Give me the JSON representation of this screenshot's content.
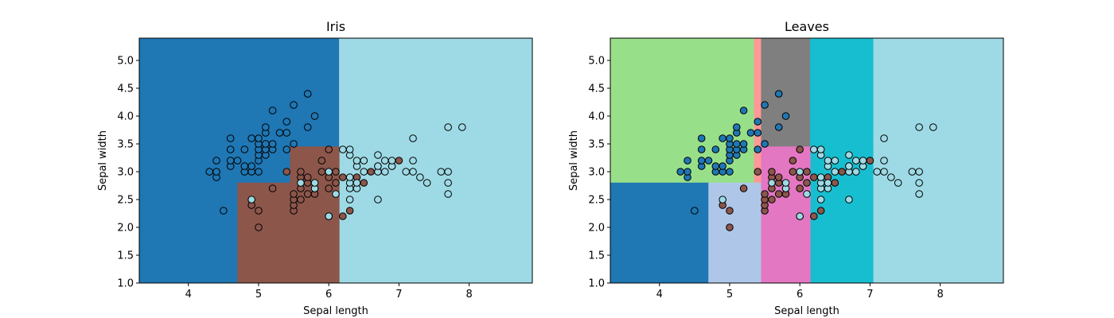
{
  "chart_data": [
    {
      "type": "scatter",
      "title": "Iris",
      "xlabel": "Sepal length",
      "ylabel": "Sepal width",
      "xlim": [
        3.3,
        8.9
      ],
      "ylim": [
        1.0,
        5.4
      ],
      "xticks": [
        "4",
        "5",
        "6",
        "7",
        "8"
      ],
      "yticks": [
        "1.0",
        "1.5",
        "2.0",
        "2.5",
        "3.0",
        "3.5",
        "4.0",
        "4.5",
        "5.0"
      ],
      "grid": false,
      "regions": [
        {
          "x": [
            3.3,
            6.15
          ],
          "y": [
            1.0,
            5.4
          ],
          "color": "#1f77b4"
        },
        {
          "x": [
            6.15,
            8.9
          ],
          "y": [
            1.0,
            5.4
          ],
          "color": "#9edae5"
        },
        {
          "x": [
            4.7,
            5.45
          ],
          "y": [
            1.0,
            2.8
          ],
          "color": "#8c564b"
        },
        {
          "x": [
            5.45,
            6.15
          ],
          "y": [
            1.0,
            3.45
          ],
          "color": "#8c564b"
        }
      ],
      "series": [
        {
          "color": "#1f77b4",
          "points": [
            [
              4.3,
              3.0
            ],
            [
              4.4,
              2.9
            ],
            [
              4.4,
              3.0
            ],
            [
              4.4,
              3.2
            ],
            [
              4.5,
              2.3
            ],
            [
              4.6,
              3.1
            ],
            [
              4.6,
              3.2
            ],
            [
              4.6,
              3.4
            ],
            [
              4.6,
              3.6
            ],
            [
              4.7,
              3.2
            ],
            [
              4.8,
              3.0
            ],
            [
              4.8,
              3.1
            ],
            [
              4.8,
              3.4
            ],
            [
              4.9,
              3.0
            ],
            [
              4.9,
              3.1
            ],
            [
              4.9,
              3.6
            ],
            [
              5.0,
              3.0
            ],
            [
              5.0,
              3.2
            ],
            [
              5.0,
              3.3
            ],
            [
              5.0,
              3.4
            ],
            [
              5.0,
              3.5
            ],
            [
              5.0,
              3.6
            ],
            [
              5.1,
              3.3
            ],
            [
              5.1,
              3.4
            ],
            [
              5.1,
              3.5
            ],
            [
              5.1,
              3.7
            ],
            [
              5.1,
              3.8
            ],
            [
              5.2,
              3.4
            ],
            [
              5.2,
              3.5
            ],
            [
              5.2,
              4.1
            ],
            [
              5.3,
              3.7
            ],
            [
              5.4,
              3.4
            ],
            [
              5.4,
              3.7
            ],
            [
              5.4,
              3.9
            ],
            [
              5.5,
              3.5
            ],
            [
              5.5,
              4.2
            ],
            [
              5.7,
              3.8
            ],
            [
              5.7,
              4.4
            ],
            [
              5.8,
              4.0
            ]
          ]
        },
        {
          "color": "#8c564b",
          "points": [
            [
              4.9,
              2.4
            ],
            [
              5.0,
              2.0
            ],
            [
              5.0,
              2.3
            ],
            [
              5.2,
              2.7
            ],
            [
              5.4,
              3.0
            ],
            [
              5.5,
              2.3
            ],
            [
              5.5,
              2.4
            ],
            [
              5.5,
              2.5
            ],
            [
              5.5,
              2.6
            ],
            [
              5.6,
              2.5
            ],
            [
              5.6,
              2.7
            ],
            [
              5.6,
              2.9
            ],
            [
              5.6,
              3.0
            ],
            [
              5.7,
              2.6
            ],
            [
              5.7,
              2.8
            ],
            [
              5.7,
              2.9
            ],
            [
              5.8,
              2.6
            ],
            [
              5.8,
              2.7
            ],
            [
              5.9,
              3.0
            ],
            [
              5.9,
              3.2
            ],
            [
              6.0,
              2.2
            ],
            [
              6.0,
              2.7
            ],
            [
              6.0,
              2.9
            ],
            [
              6.0,
              3.4
            ],
            [
              6.1,
              2.8
            ],
            [
              6.1,
              3.0
            ],
            [
              6.2,
              2.2
            ],
            [
              6.2,
              2.9
            ],
            [
              6.3,
              2.3
            ],
            [
              6.4,
              2.9
            ],
            [
              6.5,
              2.8
            ],
            [
              6.6,
              3.0
            ],
            [
              6.7,
              3.1
            ],
            [
              6.9,
              3.1
            ],
            [
              7.0,
              3.2
            ]
          ]
        },
        {
          "color": "#9edae5",
          "points": [
            [
              4.9,
              2.5
            ],
            [
              5.6,
              2.8
            ],
            [
              5.8,
              2.7
            ],
            [
              5.8,
              2.8
            ],
            [
              6.0,
              2.2
            ],
            [
              6.0,
              3.0
            ],
            [
              6.1,
              2.6
            ],
            [
              6.2,
              3.4
            ],
            [
              6.3,
              2.5
            ],
            [
              6.3,
              2.7
            ],
            [
              6.3,
              2.8
            ],
            [
              6.3,
              2.9
            ],
            [
              6.3,
              3.3
            ],
            [
              6.3,
              3.4
            ],
            [
              6.4,
              2.7
            ],
            [
              6.4,
              2.8
            ],
            [
              6.4,
              3.1
            ],
            [
              6.4,
              3.2
            ],
            [
              6.5,
              3.0
            ],
            [
              6.5,
              3.2
            ],
            [
              6.7,
              2.5
            ],
            [
              6.7,
              3.0
            ],
            [
              6.7,
              3.1
            ],
            [
              6.7,
              3.3
            ],
            [
              6.8,
              3.0
            ],
            [
              6.8,
              3.2
            ],
            [
              6.9,
              3.1
            ],
            [
              6.9,
              3.2
            ],
            [
              7.1,
              3.0
            ],
            [
              7.2,
              3.0
            ],
            [
              7.2,
              3.2
            ],
            [
              7.2,
              3.6
            ],
            [
              7.3,
              2.9
            ],
            [
              7.4,
              2.8
            ],
            [
              7.6,
              3.0
            ],
            [
              7.7,
              2.6
            ],
            [
              7.7,
              2.8
            ],
            [
              7.7,
              3.0
            ],
            [
              7.7,
              3.8
            ],
            [
              7.9,
              3.8
            ]
          ]
        }
      ]
    },
    {
      "type": "scatter",
      "title": "Leaves",
      "xlabel": "Sepal length",
      "ylabel": "Sepal width",
      "xlim": [
        3.3,
        8.9
      ],
      "ylim": [
        1.0,
        5.4
      ],
      "xticks": [
        "4",
        "5",
        "6",
        "7",
        "8"
      ],
      "yticks": [
        "1.0",
        "1.5",
        "2.0",
        "2.5",
        "3.0",
        "3.5",
        "4.0",
        "4.5",
        "5.0"
      ],
      "grid": false,
      "regions": [
        {
          "x": [
            3.3,
            5.35
          ],
          "y": [
            2.8,
            5.4
          ],
          "color": "#98df8a"
        },
        {
          "x": [
            5.35,
            5.45
          ],
          "y": [
            2.8,
            5.4
          ],
          "color": "#ff9896"
        },
        {
          "x": [
            5.45,
            6.15
          ],
          "y": [
            3.45,
            5.4
          ],
          "color": "#7f7f7f"
        },
        {
          "x": [
            6.15,
            7.05
          ],
          "y": [
            1.0,
            5.4
          ],
          "color": "#17becf"
        },
        {
          "x": [
            7.05,
            8.9
          ],
          "y": [
            1.0,
            5.4
          ],
          "color": "#9edae5"
        },
        {
          "x": [
            3.3,
            4.7
          ],
          "y": [
            1.0,
            2.8
          ],
          "color": "#1f77b4"
        },
        {
          "x": [
            4.7,
            5.45
          ],
          "y": [
            1.0,
            2.8
          ],
          "color": "#aec7e8"
        },
        {
          "x": [
            5.45,
            6.15
          ],
          "y": [
            1.0,
            3.45
          ],
          "color": "#e377c2"
        }
      ],
      "series": [
        {
          "color": "#1f77b4",
          "points": [
            [
              4.3,
              3.0
            ],
            [
              4.4,
              2.9
            ],
            [
              4.4,
              3.0
            ],
            [
              4.4,
              3.2
            ],
            [
              4.5,
              2.3
            ],
            [
              4.6,
              3.1
            ],
            [
              4.6,
              3.2
            ],
            [
              4.6,
              3.4
            ],
            [
              4.6,
              3.6
            ],
            [
              4.7,
              3.2
            ],
            [
              4.8,
              3.0
            ],
            [
              4.8,
              3.1
            ],
            [
              4.8,
              3.4
            ],
            [
              4.9,
              3.0
            ],
            [
              4.9,
              3.1
            ],
            [
              4.9,
              3.6
            ],
            [
              5.0,
              3.0
            ],
            [
              5.0,
              3.2
            ],
            [
              5.0,
              3.3
            ],
            [
              5.0,
              3.4
            ],
            [
              5.0,
              3.5
            ],
            [
              5.0,
              3.6
            ],
            [
              5.1,
              3.3
            ],
            [
              5.1,
              3.4
            ],
            [
              5.1,
              3.5
            ],
            [
              5.1,
              3.7
            ],
            [
              5.1,
              3.8
            ],
            [
              5.2,
              3.4
            ],
            [
              5.2,
              3.5
            ],
            [
              5.2,
              4.1
            ],
            [
              5.3,
              3.7
            ],
            [
              5.4,
              3.4
            ],
            [
              5.4,
              3.7
            ],
            [
              5.4,
              3.9
            ],
            [
              5.5,
              3.5
            ],
            [
              5.5,
              4.2
            ],
            [
              5.7,
              3.8
            ],
            [
              5.7,
              4.4
            ],
            [
              5.8,
              4.0
            ]
          ]
        },
        {
          "color": "#8c564b",
          "points": [
            [
              4.9,
              2.4
            ],
            [
              5.0,
              2.0
            ],
            [
              5.0,
              2.3
            ],
            [
              5.2,
              2.7
            ],
            [
              5.4,
              3.0
            ],
            [
              5.5,
              2.3
            ],
            [
              5.5,
              2.4
            ],
            [
              5.5,
              2.5
            ],
            [
              5.5,
              2.6
            ],
            [
              5.6,
              2.5
            ],
            [
              5.6,
              2.7
            ],
            [
              5.6,
              2.9
            ],
            [
              5.6,
              3.0
            ],
            [
              5.7,
              2.6
            ],
            [
              5.7,
              2.8
            ],
            [
              5.7,
              2.9
            ],
            [
              5.8,
              2.6
            ],
            [
              5.8,
              2.7
            ],
            [
              5.9,
              3.0
            ],
            [
              5.9,
              3.2
            ],
            [
              6.0,
              2.2
            ],
            [
              6.0,
              2.7
            ],
            [
              6.0,
              2.9
            ],
            [
              6.0,
              3.4
            ],
            [
              6.1,
              2.8
            ],
            [
              6.1,
              3.0
            ],
            [
              6.2,
              2.2
            ],
            [
              6.2,
              2.9
            ],
            [
              6.3,
              2.3
            ],
            [
              6.4,
              2.9
            ],
            [
              6.5,
              2.8
            ],
            [
              6.6,
              3.0
            ],
            [
              6.7,
              3.1
            ],
            [
              6.9,
              3.1
            ],
            [
              7.0,
              3.2
            ]
          ]
        },
        {
          "color": "#9edae5",
          "points": [
            [
              4.9,
              2.5
            ],
            [
              5.6,
              2.8
            ],
            [
              5.8,
              2.7
            ],
            [
              5.8,
              2.8
            ],
            [
              6.0,
              2.2
            ],
            [
              6.0,
              3.0
            ],
            [
              6.1,
              2.6
            ],
            [
              6.2,
              3.4
            ],
            [
              6.3,
              2.5
            ],
            [
              6.3,
              2.7
            ],
            [
              6.3,
              2.8
            ],
            [
              6.3,
              2.9
            ],
            [
              6.3,
              3.3
            ],
            [
              6.3,
              3.4
            ],
            [
              6.4,
              2.7
            ],
            [
              6.4,
              2.8
            ],
            [
              6.4,
              3.1
            ],
            [
              6.4,
              3.2
            ],
            [
              6.5,
              3.0
            ],
            [
              6.5,
              3.2
            ],
            [
              6.7,
              2.5
            ],
            [
              6.7,
              3.0
            ],
            [
              6.7,
              3.1
            ],
            [
              6.7,
              3.3
            ],
            [
              6.8,
              3.0
            ],
            [
              6.8,
              3.2
            ],
            [
              6.9,
              3.1
            ],
            [
              6.9,
              3.2
            ],
            [
              7.1,
              3.0
            ],
            [
              7.2,
              3.0
            ],
            [
              7.2,
              3.2
            ],
            [
              7.2,
              3.6
            ],
            [
              7.3,
              2.9
            ],
            [
              7.4,
              2.8
            ],
            [
              7.6,
              3.0
            ],
            [
              7.7,
              2.6
            ],
            [
              7.7,
              2.8
            ],
            [
              7.7,
              3.0
            ],
            [
              7.7,
              3.8
            ],
            [
              7.9,
              3.8
            ]
          ]
        }
      ]
    }
  ]
}
